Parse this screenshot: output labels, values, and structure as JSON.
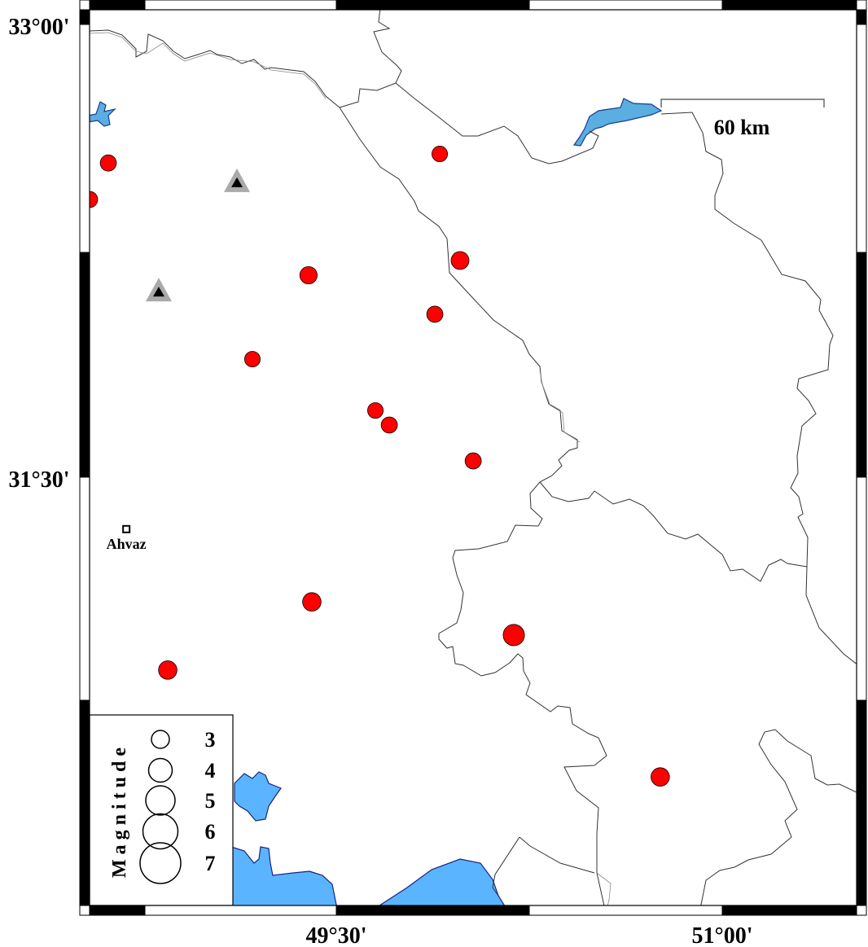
{
  "map": {
    "lat_ticks": [
      {
        "value": 33.0,
        "label": "33°00'"
      },
      {
        "value": 31.5,
        "label": "31°30'"
      }
    ],
    "lon_ticks": [
      {
        "value": 49.5,
        "label": "49°30'"
      },
      {
        "value": 51.0,
        "label": "51°00'"
      }
    ],
    "scale_bar": {
      "label": "60 km",
      "length_km": 60
    },
    "colors": {
      "event_fill": "#ff0000",
      "water": "#5ab4ff",
      "station_outer": "#aaaaaa",
      "station_inner": "#000000"
    },
    "city": {
      "name": "Ahvaz",
      "lon": 48.684,
      "lat": 31.328
    },
    "stations": [
      {
        "lon": 49.114,
        "lat": 32.477
      },
      {
        "lon": 48.81,
        "lat": 32.115
      }
    ],
    "events": [
      {
        "lon": 48.614,
        "lat": 32.541,
        "mag": 2.7
      },
      {
        "lon": 48.541,
        "lat": 32.42,
        "mag": 2.7
      },
      {
        "lon": 49.902,
        "lat": 32.571,
        "mag": 2.6
      },
      {
        "lon": 49.981,
        "lat": 32.218,
        "mag": 3.0
      },
      {
        "lon": 49.392,
        "lat": 32.169,
        "mag": 2.9
      },
      {
        "lon": 49.883,
        "lat": 32.04,
        "mag": 2.7
      },
      {
        "lon": 49.174,
        "lat": 31.891,
        "mag": 2.6
      },
      {
        "lon": 49.652,
        "lat": 31.721,
        "mag": 2.6
      },
      {
        "lon": 49.706,
        "lat": 31.673,
        "mag": 2.7
      },
      {
        "lon": 50.032,
        "lat": 31.554,
        "mag": 2.7
      },
      {
        "lon": 49.405,
        "lat": 31.087,
        "mag": 3.1
      },
      {
        "lon": 50.19,
        "lat": 30.977,
        "mag": 3.6
      },
      {
        "lon": 48.845,
        "lat": 30.861,
        "mag": 3.1
      },
      {
        "lon": 50.759,
        "lat": 30.507,
        "mag": 3.1
      }
    ],
    "legend": {
      "title": "Magnitude",
      "items": [
        {
          "mag": 3,
          "label": "3"
        },
        {
          "mag": 4,
          "label": "4"
        },
        {
          "mag": 5,
          "label": "5"
        },
        {
          "mag": 6,
          "label": "6"
        },
        {
          "mag": 7,
          "label": "7"
        }
      ]
    }
  }
}
